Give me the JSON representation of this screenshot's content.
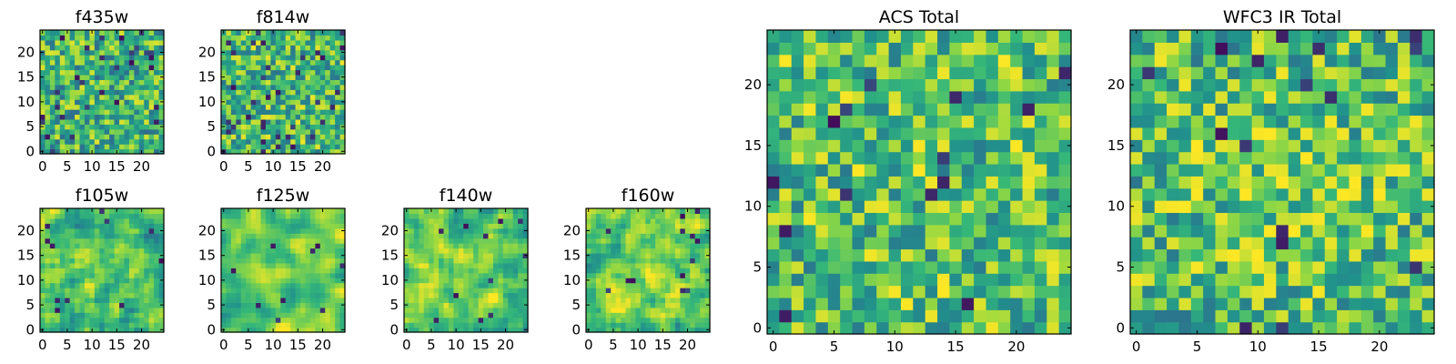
{
  "figure": {
    "colormap": [
      "#440154",
      "#31688e",
      "#21918c",
      "#35b779",
      "#90d743",
      "#fde725"
    ]
  },
  "chart_data": [
    {
      "type": "heatmap",
      "title": "f435w",
      "grid_size": 25,
      "xticks": [
        "0",
        "5",
        "10",
        "15",
        "20"
      ],
      "yticks": [
        "0",
        "5",
        "10",
        "15",
        "20"
      ],
      "seed": 11,
      "smoothness": 0,
      "bias": 0.0,
      "center_boost": 0.0,
      "dark_fraction": 0.05
    },
    {
      "type": "heatmap",
      "title": "f814w",
      "grid_size": 25,
      "xticks": [
        "0",
        "5",
        "10",
        "15",
        "20"
      ],
      "yticks": [
        "0",
        "5",
        "10",
        "15",
        "20"
      ],
      "seed": 23,
      "smoothness": 0,
      "bias": 0.03,
      "center_boost": 0.0,
      "dark_fraction": 0.05
    },
    {
      "type": "heatmap",
      "title": "f105w",
      "grid_size": 25,
      "xticks": [
        "0",
        "5",
        "10",
        "15",
        "20"
      ],
      "yticks": [
        "0",
        "5",
        "10",
        "15",
        "20"
      ],
      "seed": 37,
      "smoothness": 1,
      "bias": 0.05,
      "center_boost": 0.1,
      "dark_fraction": 0.02
    },
    {
      "type": "heatmap",
      "title": "f125w",
      "grid_size": 25,
      "xticks": [
        "0",
        "5",
        "10",
        "15",
        "20"
      ],
      "yticks": [
        "0",
        "5",
        "10",
        "15",
        "20"
      ],
      "seed": 41,
      "smoothness": 2,
      "bias": 0.12,
      "center_boost": 0.15,
      "dark_fraction": 0.01
    },
    {
      "type": "heatmap",
      "title": "f140w",
      "grid_size": 25,
      "xticks": [
        "0",
        "5",
        "10",
        "15",
        "20"
      ],
      "yticks": [
        "0",
        "5",
        "10",
        "15",
        "20"
      ],
      "seed": 53,
      "smoothness": 1,
      "bias": 0.08,
      "center_boost": 0.05,
      "dark_fraction": 0.02
    },
    {
      "type": "heatmap",
      "title": "f160w",
      "grid_size": 25,
      "xticks": [
        "0",
        "5",
        "10",
        "15",
        "20"
      ],
      "yticks": [
        "0",
        "5",
        "10",
        "15",
        "20"
      ],
      "seed": 67,
      "smoothness": 1,
      "bias": 0.1,
      "center_boost": 0.1,
      "dark_fraction": 0.02
    },
    {
      "type": "heatmap",
      "title": "ACS Total",
      "grid_size": 25,
      "xticks": [
        "0",
        "5",
        "10",
        "15",
        "20"
      ],
      "yticks": [
        "0",
        "5",
        "10",
        "15",
        "20"
      ],
      "seed": 79,
      "smoothness": 0,
      "bias": 0.06,
      "center_boost": 0.0,
      "dark_fraction": 0.03
    },
    {
      "type": "heatmap",
      "title": "WFC3 IR Total",
      "grid_size": 25,
      "xticks": [
        "0",
        "5",
        "10",
        "15",
        "20"
      ],
      "yticks": [
        "0",
        "5",
        "10",
        "15",
        "20"
      ],
      "seed": 97,
      "smoothness": 0,
      "bias": 0.04,
      "center_boost": 0.12,
      "dark_fraction": 0.03
    }
  ]
}
